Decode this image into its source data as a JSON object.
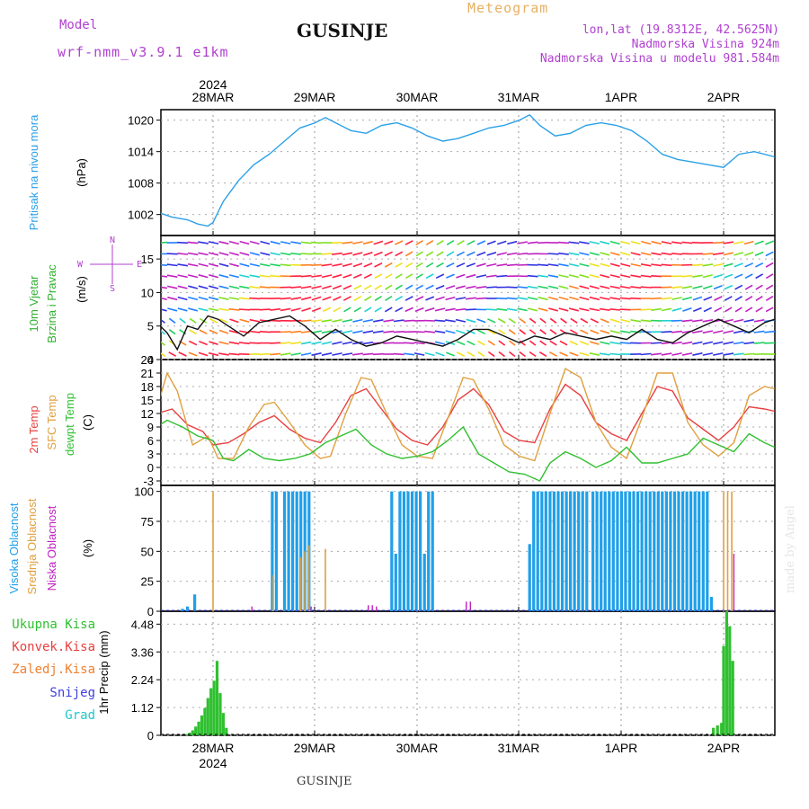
{
  "header": {
    "model_label": "Model",
    "model_name": "wrf-nmm_v3.9.1 e1km",
    "station": "GUSINJE",
    "product": "Meteogram",
    "lonlat": "lon,lat (19.8312E, 42.5625N)",
    "elevation": "Nadmorska Visina 924m",
    "model_elevation": "Nadmorska Visina u modelu 981.584m",
    "credit": "made by Angel",
    "footer_station": "GUSINJE"
  },
  "colors": {
    "pressure": "#2aa0e8",
    "temp2m": "#e84040",
    "sfc_temp": "#e0a040",
    "dewpoint": "#30c030",
    "cloud_high": "#20a0e8",
    "cloud_mid": "#e0a040",
    "cloud_low": "#c020c0",
    "precip_total": "#30c030",
    "precip_conv": "#e84040",
    "precip_frozen": "#f08030",
    "snow": "#4040e0",
    "graupel": "#20c8c8",
    "wind_speed": "#111111"
  },
  "x_axis": {
    "year_top": "2024",
    "year_bottom": "2024",
    "day_labels": [
      "28MAR",
      "29MAR",
      "30MAR",
      "31MAR",
      "1APR",
      "2APR"
    ]
  },
  "chart_data": [
    {
      "type": "line",
      "title": "",
      "ylabel_lines": [
        "Pritisak na nivou mora",
        "(hPa)"
      ],
      "yticks": [
        1002,
        1008,
        1014,
        1020
      ],
      "ylim": [
        998,
        1022
      ],
      "x_unit": "day offset from 28MAR 00UTC",
      "xlim": [
        -0.55,
        5.5
      ],
      "series": [
        {
          "key": "pressure",
          "x": [
            -0.55,
            -0.4,
            -0.25,
            -0.15,
            -0.05,
            0.0,
            0.1,
            0.25,
            0.4,
            0.55,
            0.7,
            0.85,
            1.0,
            1.1,
            1.2,
            1.35,
            1.5,
            1.65,
            1.8,
            1.95,
            2.1,
            2.25,
            2.4,
            2.55,
            2.7,
            2.85,
            3.0,
            3.1,
            3.2,
            3.35,
            3.5,
            3.65,
            3.8,
            3.95,
            4.1,
            4.25,
            4.4,
            4.55,
            4.7,
            4.85,
            5.0,
            5.15,
            5.3,
            5.5
          ],
          "y": [
            1002.5,
            1001.5,
            1001.0,
            1000.2,
            999.8,
            1000.5,
            1004.5,
            1008.5,
            1011.5,
            1013.5,
            1016.0,
            1018.5,
            1019.5,
            1020.5,
            1019.5,
            1018.0,
            1017.5,
            1019.0,
            1019.5,
            1018.5,
            1017.0,
            1016.0,
            1016.5,
            1017.5,
            1018.5,
            1019.0,
            1020.0,
            1021.0,
            1019.0,
            1017.0,
            1017.5,
            1019.0,
            1019.5,
            1019.0,
            1018.0,
            1016.0,
            1013.5,
            1012.5,
            1012.0,
            1011.5,
            1011.0,
            1013.5,
            1014.0,
            1013.0
          ]
        }
      ]
    },
    {
      "type": "line",
      "title": "",
      "ylabel_lines": [
        "10m Vjetar",
        "Brzina i Pravac",
        "(m/s)"
      ],
      "compass_labels": [
        "N",
        "W",
        "E",
        "S"
      ],
      "yticks": [
        0,
        5,
        10,
        15
      ],
      "ylim": [
        0,
        18.5
      ],
      "xlim": [
        -0.55,
        5.5
      ],
      "series": [
        {
          "key": "wind_speed",
          "name": "",
          "x": [
            -0.55,
            -0.45,
            -0.35,
            -0.25,
            -0.15,
            -0.05,
            0.05,
            0.15,
            0.3,
            0.45,
            0.6,
            0.75,
            0.9,
            1.05,
            1.2,
            1.35,
            1.5,
            1.65,
            1.8,
            1.95,
            2.1,
            2.25,
            2.4,
            2.55,
            2.7,
            2.85,
            3.0,
            3.15,
            3.3,
            3.45,
            3.6,
            3.75,
            3.9,
            4.05,
            4.2,
            4.35,
            4.5,
            4.65,
            4.8,
            4.95,
            5.1,
            5.25,
            5.4,
            5.5
          ],
          "y": [
            5.5,
            4.0,
            1.5,
            5.0,
            4.5,
            6.5,
            6.0,
            5.0,
            3.5,
            5.5,
            6.0,
            6.5,
            5.0,
            3.0,
            4.5,
            3.0,
            2.0,
            2.5,
            3.5,
            3.0,
            2.5,
            2.0,
            3.0,
            4.5,
            4.5,
            3.5,
            2.5,
            3.5,
            3.0,
            4.0,
            3.5,
            3.0,
            3.5,
            3.0,
            4.5,
            3.0,
            2.5,
            4.0,
            5.0,
            6.0,
            5.0,
            4.0,
            5.5,
            6.0
          ]
        }
      ]
    },
    {
      "type": "line",
      "title": "",
      "ylabel_lines": [
        "2m Temp",
        "SFC Temp",
        "dewpt Temp",
        "(C)"
      ],
      "yticks": [
        -3,
        0,
        3,
        6,
        9,
        12,
        15,
        18,
        21,
        24
      ],
      "ylim": [
        -4,
        24
      ],
      "xlim": [
        -0.55,
        5.5
      ],
      "series": [
        {
          "key": "temp2m",
          "name": "2m Temp",
          "x": [
            -0.55,
            -0.4,
            -0.25,
            -0.1,
            0.0,
            0.15,
            0.3,
            0.45,
            0.6,
            0.75,
            0.9,
            1.05,
            1.2,
            1.35,
            1.5,
            1.65,
            1.8,
            1.95,
            2.1,
            2.25,
            2.4,
            2.55,
            2.7,
            2.85,
            3.0,
            3.15,
            3.3,
            3.45,
            3.6,
            3.75,
            3.9,
            4.05,
            4.2,
            4.35,
            4.5,
            4.65,
            4.8,
            4.95,
            5.1,
            5.25,
            5.4,
            5.5
          ],
          "y": [
            12.0,
            13.0,
            9.5,
            8.0,
            5.0,
            5.5,
            7.5,
            10.0,
            11.5,
            8.5,
            6.5,
            5.5,
            10.0,
            16.0,
            17.5,
            13.0,
            8.5,
            6.0,
            5.0,
            9.0,
            15.0,
            17.5,
            14.0,
            8.0,
            6.0,
            5.5,
            13.0,
            18.5,
            16.0,
            10.0,
            7.5,
            6.0,
            12.0,
            18.0,
            17.0,
            11.0,
            8.5,
            6.0,
            9.0,
            13.5,
            13.0,
            12.5
          ]
        },
        {
          "key": "sfc_temp",
          "name": "SFC Temp",
          "x": [
            -0.55,
            -0.45,
            -0.35,
            -0.2,
            -0.05,
            0.05,
            0.2,
            0.35,
            0.5,
            0.6,
            0.75,
            0.9,
            1.05,
            1.15,
            1.3,
            1.45,
            1.55,
            1.7,
            1.85,
            2.0,
            2.15,
            2.3,
            2.45,
            2.55,
            2.7,
            2.85,
            3.0,
            3.15,
            3.3,
            3.45,
            3.6,
            3.75,
            3.9,
            4.05,
            4.2,
            4.35,
            4.5,
            4.65,
            4.8,
            4.95,
            5.1,
            5.25,
            5.4,
            5.5
          ],
          "y": [
            13.0,
            21.0,
            17.0,
            5.0,
            7.0,
            2.0,
            2.0,
            9.0,
            14.0,
            14.5,
            10.0,
            5.0,
            2.0,
            2.5,
            12.0,
            20.0,
            19.5,
            12.0,
            5.0,
            2.5,
            2.0,
            11.0,
            20.0,
            19.5,
            13.0,
            5.0,
            2.5,
            1.5,
            12.0,
            22.0,
            20.0,
            10.0,
            4.5,
            2.0,
            11.0,
            21.0,
            21.0,
            10.0,
            5.0,
            2.5,
            5.5,
            16.0,
            18.0,
            17.5
          ]
        },
        {
          "key": "dewpoint",
          "name": "dewpt Temp",
          "x": [
            -0.55,
            -0.45,
            -0.3,
            -0.15,
            0.0,
            0.1,
            0.2,
            0.35,
            0.5,
            0.65,
            0.8,
            0.95,
            1.1,
            1.25,
            1.4,
            1.55,
            1.7,
            1.85,
            2.0,
            2.15,
            2.3,
            2.45,
            2.6,
            2.75,
            2.9,
            3.05,
            3.2,
            3.3,
            3.45,
            3.6,
            3.75,
            3.9,
            4.05,
            4.2,
            4.35,
            4.5,
            4.65,
            4.8,
            4.95,
            5.1,
            5.25,
            5.4,
            5.5
          ],
          "y": [
            9.0,
            10.5,
            9.0,
            7.0,
            6.0,
            2.0,
            1.5,
            4.0,
            2.0,
            1.5,
            2.0,
            3.0,
            5.5,
            7.0,
            8.5,
            5.0,
            3.0,
            2.0,
            2.5,
            3.5,
            6.0,
            9.0,
            3.0,
            1.0,
            -1.0,
            -1.5,
            -3.0,
            1.0,
            3.5,
            2.0,
            0.0,
            1.5,
            4.5,
            1.0,
            1.0,
            2.0,
            3.0,
            6.5,
            5.0,
            3.5,
            7.5,
            5.5,
            4.5
          ]
        }
      ]
    },
    {
      "type": "bar",
      "title": "",
      "ylabel_lines": [
        "Visoka Oblacnost",
        "Srednja Oblacnost",
        "Niska Oblacnost",
        "(%)"
      ],
      "yticks": [
        0,
        25,
        50,
        75,
        100
      ],
      "ylim": [
        0,
        105
      ],
      "xlim": [
        -0.55,
        5.5
      ],
      "series": [
        {
          "key": "cloud_high",
          "name": "Visoka Oblacnost",
          "x": [
            -0.3,
            -0.25,
            -0.18,
            0.58,
            0.62,
            0.7,
            0.74,
            0.78,
            0.82,
            0.86,
            0.9,
            0.94,
            1.75,
            1.79,
            1.83,
            1.87,
            1.91,
            1.95,
            1.99,
            2.03,
            2.07,
            2.11,
            2.15,
            3.1,
            3.14,
            3.18,
            3.22,
            3.26,
            3.3,
            3.34,
            3.38,
            3.42,
            3.46,
            3.5,
            3.54,
            3.58,
            3.62,
            3.66,
            3.72,
            3.76,
            3.8,
            3.84,
            3.88,
            3.92,
            3.96,
            4.0,
            4.04,
            4.08,
            4.12,
            4.16,
            4.2,
            4.24,
            4.28,
            4.32,
            4.36,
            4.4,
            4.44,
            4.48,
            4.52,
            4.56,
            4.6,
            4.64,
            4.68,
            4.72,
            4.76,
            4.8,
            4.84,
            4.88
          ],
          "y": [
            2,
            4,
            14,
            100,
            100,
            100,
            100,
            100,
            100,
            100,
            100,
            100,
            100,
            48,
            100,
            100,
            100,
            100,
            100,
            100,
            48,
            100,
            100,
            56,
            100,
            100,
            100,
            100,
            100,
            100,
            100,
            100,
            100,
            100,
            100,
            100,
            100,
            100,
            100,
            100,
            100,
            100,
            100,
            100,
            100,
            100,
            100,
            100,
            100,
            100,
            100,
            100,
            100,
            100,
            100,
            100,
            100,
            100,
            100,
            100,
            100,
            100,
            100,
            100,
            100,
            100,
            100,
            12
          ]
        },
        {
          "key": "cloud_mid",
          "name": "Srednja Oblacnost",
          "x": [
            0.0,
            0.59,
            0.86,
            0.9,
            0.94,
            1.1,
            5.0,
            5.04,
            5.08
          ],
          "y": [
            100,
            30,
            45,
            50,
            55,
            52,
            100,
            100,
            100
          ]
        },
        {
          "key": "cloud_low",
          "name": "Niska Oblacnost",
          "x": [
            0.38,
            0.96,
            1.52,
            1.56,
            1.6,
            2.48,
            2.52,
            5.1
          ],
          "y": [
            4,
            4,
            5,
            5,
            4,
            8,
            8,
            48
          ]
        }
      ]
    },
    {
      "type": "bar",
      "title": "",
      "ylabel_lines": [
        "1hr Precip (mm)"
      ],
      "legend": [
        "Ukupna Kisa",
        "Konvek.Kisa",
        "Zaledj.Kisa",
        "Snijeg",
        "Grad"
      ],
      "yticks": [
        0,
        1.12,
        2.24,
        3.36,
        4.48
      ],
      "ylim": [
        0,
        5.0
      ],
      "xlim": [
        -0.55,
        5.5
      ],
      "series": [
        {
          "key": "precip_total",
          "name": "Ukupna Kisa",
          "x": [
            -0.26,
            -0.23,
            -0.2,
            -0.17,
            -0.14,
            -0.11,
            -0.08,
            -0.05,
            -0.02,
            0.01,
            0.04,
            0.07,
            0.1,
            0.13,
            4.9,
            4.94,
            4.98,
            5.0,
            5.03,
            5.06,
            5.09
          ],
          "y": [
            0.05,
            0.1,
            0.2,
            0.35,
            0.55,
            0.8,
            1.1,
            1.5,
            1.9,
            2.2,
            3.0,
            1.7,
            0.9,
            0.3,
            0.3,
            0.4,
            0.5,
            3.6,
            5.2,
            4.4,
            3.0
          ]
        }
      ]
    }
  ]
}
